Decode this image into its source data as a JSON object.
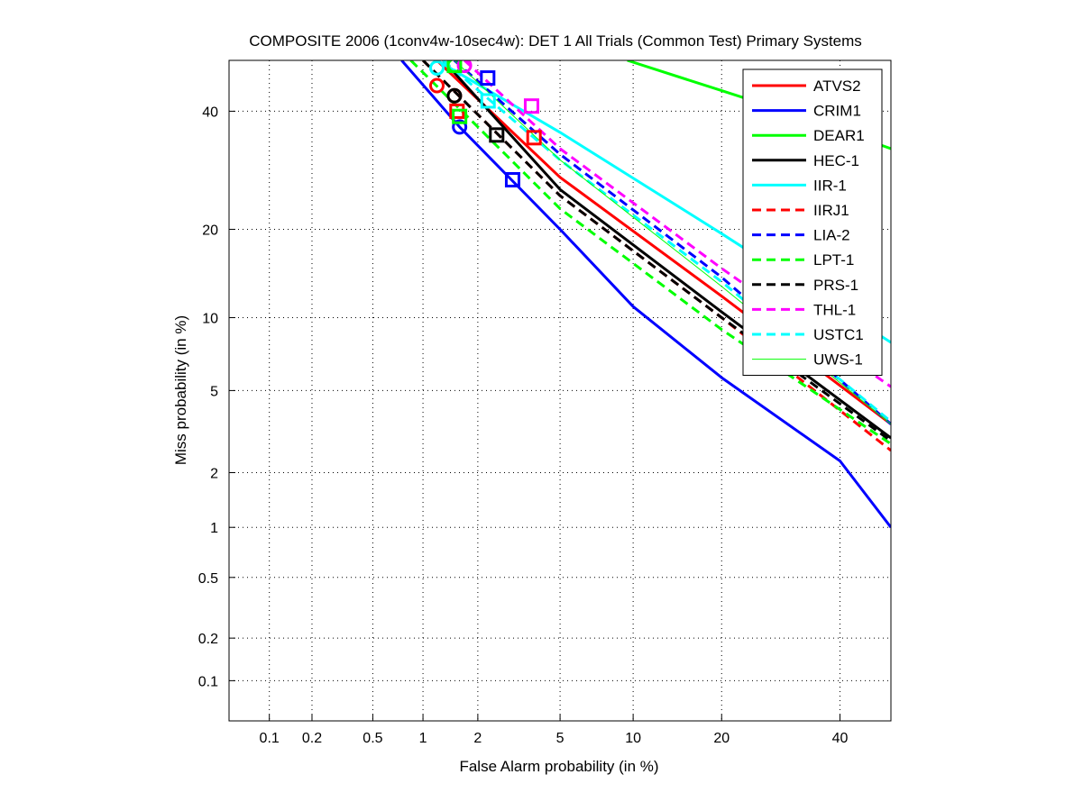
{
  "chart_data": {
    "type": "line",
    "title": "COMPOSITE 2006 (1conv4w-10sec4w): DET 1 All Trials (Common Test) Primary Systems",
    "xlabel": "False Alarm probability (in %)",
    "ylabel": "Miss probability (in %)",
    "xscale": "probit",
    "yscale": "probit",
    "xlim": [
      0.05,
      50
    ],
    "ylim": [
      0.05,
      50
    ],
    "xticks": [
      "0.1",
      "0.2",
      "0.5",
      "1",
      "2",
      "5",
      "10",
      "20",
      "40"
    ],
    "yticks": [
      "0.1",
      "0.2",
      "0.5",
      "1",
      "2",
      "5",
      "10",
      "20",
      "40"
    ],
    "grid": true,
    "legend_position": "top-right",
    "series": [
      {
        "name": "ATVS2",
        "color": "#ff0000",
        "style": "solid",
        "x": [
          1.2,
          5,
          20,
          50
        ],
        "y": [
          50,
          28,
          12,
          3.5
        ],
        "min_dcf": [
          1.2,
          45
        ],
        "act_dcf": [
          3.8,
          35
        ]
      },
      {
        "name": "CRIM1",
        "color": "#0000ff",
        "style": "solid",
        "x": [
          0.75,
          1.6,
          5,
          10,
          20,
          40,
          50
        ],
        "y": [
          50,
          37,
          20,
          11,
          5.7,
          2.3,
          1
        ],
        "min_dcf": [
          1.6,
          37
        ],
        "act_dcf": [
          3.0,
          27.6
        ]
      },
      {
        "name": "DEAR1",
        "color": "#00ff00",
        "style": "solid",
        "x": [
          9.5,
          20,
          30,
          50
        ],
        "y": [
          50,
          44,
          40,
          33
        ]
      },
      {
        "name": "HEC-1",
        "color": "#000000",
        "style": "solid",
        "x": [
          1.3,
          5,
          20,
          50
        ],
        "y": [
          50,
          26,
          10.5,
          3
        ]
      },
      {
        "name": "IIR-1",
        "color": "#00ffff",
        "style": "solid",
        "x": [
          1.2,
          5,
          20,
          50
        ],
        "y": [
          50,
          36,
          19.4,
          8
        ],
        "min_dcf": [
          1.2,
          48.5
        ],
        "act_dcf": [
          2.26,
          42
        ]
      },
      {
        "name": "IIRJ1",
        "color": "#ff0000",
        "style": "dashed",
        "x": [
          1.0,
          5,
          20,
          50
        ],
        "y": [
          50,
          25,
          10,
          2.6
        ],
        "min_dcf": [
          1.5,
          43
        ],
        "act_dcf": [
          1.55,
          40
        ]
      },
      {
        "name": "LIA-2",
        "color": "#0000ff",
        "style": "dashed",
        "x": [
          1.5,
          5,
          20,
          50
        ],
        "y": [
          50,
          32,
          14,
          3.5
        ],
        "act_dcf": [
          2.25,
          46.5
        ]
      },
      {
        "name": "LPT-1",
        "color": "#00ff00",
        "style": "dashed",
        "x": [
          0.85,
          5,
          20,
          50
        ],
        "y": [
          50,
          23,
          9,
          2.8
        ],
        "min_dcf": [
          1.5,
          49
        ],
        "act_dcf": [
          1.6,
          39
        ]
      },
      {
        "name": "PRS-1",
        "color": "#000000",
        "style": "dashed",
        "x": [
          1.0,
          5,
          20,
          50
        ],
        "y": [
          50,
          25,
          10,
          2.9
        ],
        "min_dcf": [
          1.5,
          43
        ],
        "act_dcf": [
          2.5,
          35.5
        ]
      },
      {
        "name": "THL-1",
        "color": "#ff00ff",
        "style": "dashed",
        "x": [
          1.7,
          5,
          20,
          50
        ],
        "y": [
          50,
          33,
          15,
          5.2
        ],
        "min_dcf": [
          1.7,
          49
        ],
        "act_dcf": [
          3.7,
          41
        ]
      },
      {
        "name": "USTC1",
        "color": "#00ffff",
        "style": "dashed",
        "x": [
          1.3,
          5,
          20,
          50
        ],
        "y": [
          50,
          31,
          13.5,
          3.6
        ],
        "min_dcf": [
          1.2,
          48.5
        ]
      },
      {
        "name": "UWS-1",
        "color": "#00ff00",
        "style": "thin",
        "x": [
          1.5,
          5,
          20,
          50
        ],
        "y": [
          50,
          31,
          13,
          3.5
        ],
        "act_dcf": [
          1.5,
          49
        ]
      }
    ]
  }
}
